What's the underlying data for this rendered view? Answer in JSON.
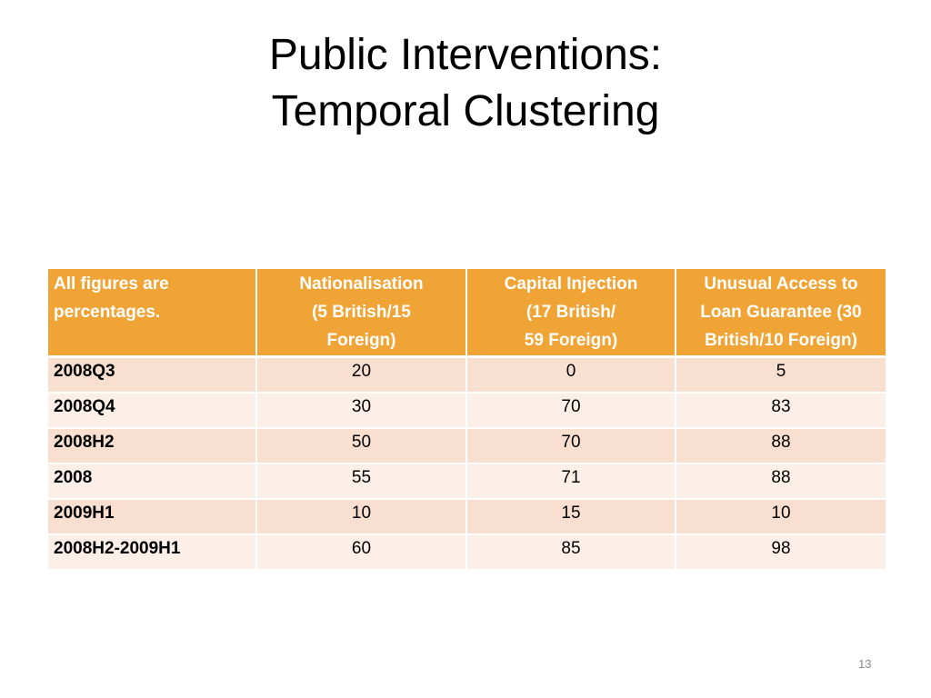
{
  "slide": {
    "title_line1": "Public Interventions:",
    "title_line2": "Temporal Clustering",
    "page_number": "13"
  },
  "table": {
    "headers": [
      [
        "All figures are",
        "percentages."
      ],
      [
        "Nationalisation",
        "(5 British/15",
        "Foreign)"
      ],
      [
        "Capital Injection",
        "(17 British/",
        "59 Foreign)"
      ],
      [
        "Unusual Access to",
        "Loan Guarantee (30",
        "British/10 Foreign)"
      ]
    ],
    "rows": [
      {
        "label": "2008Q3",
        "values": [
          "20",
          "0",
          "5"
        ]
      },
      {
        "label": "2008Q4",
        "values": [
          "30",
          "70",
          "83"
        ]
      },
      {
        "label": "2008H2",
        "values": [
          "50",
          "70",
          "88"
        ]
      },
      {
        "label": "2008",
        "values": [
          "55",
          "71",
          "88"
        ]
      },
      {
        "label": "2009H1",
        "values": [
          "10",
          "15",
          "10"
        ]
      },
      {
        "label": "2008H2-2009H1",
        "values": [
          "60",
          "85",
          "98"
        ]
      }
    ]
  },
  "colors": {
    "header_bg": "#efa435",
    "row_odd_bg": "#f8dfd0",
    "row_even_bg": "#fcefe8"
  }
}
